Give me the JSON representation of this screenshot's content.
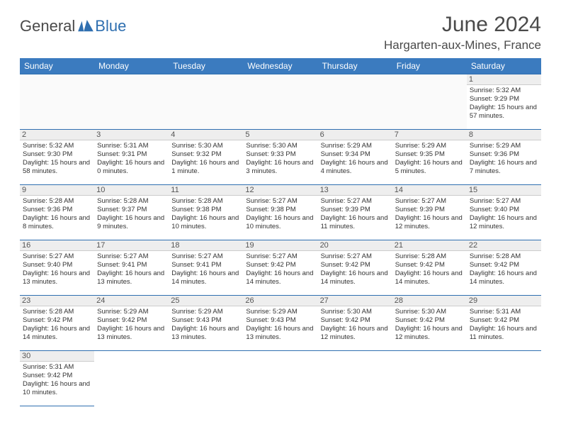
{
  "logo": {
    "text1": "General",
    "text2": "Blue"
  },
  "title": "June 2024",
  "location": "Hargarten-aux-Mines, France",
  "columns": [
    "Sunday",
    "Monday",
    "Tuesday",
    "Wednesday",
    "Thursday",
    "Friday",
    "Saturday"
  ],
  "colors": {
    "header_bg": "#3b7bbf",
    "header_fg": "#ffffff",
    "border": "#2f6fb0",
    "daynum_bg": "#eeeeee",
    "text": "#333333",
    "logo_gray": "#4a4a4a",
    "logo_blue": "#2f6fb0"
  },
  "weeks": [
    [
      null,
      null,
      null,
      null,
      null,
      null,
      {
        "n": "1",
        "sunrise": "5:32 AM",
        "sunset": "9:29 PM",
        "daylight": "15 hours and 57 minutes."
      }
    ],
    [
      {
        "n": "2",
        "sunrise": "5:32 AM",
        "sunset": "9:30 PM",
        "daylight": "15 hours and 58 minutes."
      },
      {
        "n": "3",
        "sunrise": "5:31 AM",
        "sunset": "9:31 PM",
        "daylight": "16 hours and 0 minutes."
      },
      {
        "n": "4",
        "sunrise": "5:30 AM",
        "sunset": "9:32 PM",
        "daylight": "16 hours and 1 minute."
      },
      {
        "n": "5",
        "sunrise": "5:30 AM",
        "sunset": "9:33 PM",
        "daylight": "16 hours and 3 minutes."
      },
      {
        "n": "6",
        "sunrise": "5:29 AM",
        "sunset": "9:34 PM",
        "daylight": "16 hours and 4 minutes."
      },
      {
        "n": "7",
        "sunrise": "5:29 AM",
        "sunset": "9:35 PM",
        "daylight": "16 hours and 5 minutes."
      },
      {
        "n": "8",
        "sunrise": "5:29 AM",
        "sunset": "9:36 PM",
        "daylight": "16 hours and 7 minutes."
      }
    ],
    [
      {
        "n": "9",
        "sunrise": "5:28 AM",
        "sunset": "9:36 PM",
        "daylight": "16 hours and 8 minutes."
      },
      {
        "n": "10",
        "sunrise": "5:28 AM",
        "sunset": "9:37 PM",
        "daylight": "16 hours and 9 minutes."
      },
      {
        "n": "11",
        "sunrise": "5:28 AM",
        "sunset": "9:38 PM",
        "daylight": "16 hours and 10 minutes."
      },
      {
        "n": "12",
        "sunrise": "5:27 AM",
        "sunset": "9:38 PM",
        "daylight": "16 hours and 10 minutes."
      },
      {
        "n": "13",
        "sunrise": "5:27 AM",
        "sunset": "9:39 PM",
        "daylight": "16 hours and 11 minutes."
      },
      {
        "n": "14",
        "sunrise": "5:27 AM",
        "sunset": "9:39 PM",
        "daylight": "16 hours and 12 minutes."
      },
      {
        "n": "15",
        "sunrise": "5:27 AM",
        "sunset": "9:40 PM",
        "daylight": "16 hours and 12 minutes."
      }
    ],
    [
      {
        "n": "16",
        "sunrise": "5:27 AM",
        "sunset": "9:40 PM",
        "daylight": "16 hours and 13 minutes."
      },
      {
        "n": "17",
        "sunrise": "5:27 AM",
        "sunset": "9:41 PM",
        "daylight": "16 hours and 13 minutes."
      },
      {
        "n": "18",
        "sunrise": "5:27 AM",
        "sunset": "9:41 PM",
        "daylight": "16 hours and 14 minutes."
      },
      {
        "n": "19",
        "sunrise": "5:27 AM",
        "sunset": "9:42 PM",
        "daylight": "16 hours and 14 minutes."
      },
      {
        "n": "20",
        "sunrise": "5:27 AM",
        "sunset": "9:42 PM",
        "daylight": "16 hours and 14 minutes."
      },
      {
        "n": "21",
        "sunrise": "5:28 AM",
        "sunset": "9:42 PM",
        "daylight": "16 hours and 14 minutes."
      },
      {
        "n": "22",
        "sunrise": "5:28 AM",
        "sunset": "9:42 PM",
        "daylight": "16 hours and 14 minutes."
      }
    ],
    [
      {
        "n": "23",
        "sunrise": "5:28 AM",
        "sunset": "9:42 PM",
        "daylight": "16 hours and 14 minutes."
      },
      {
        "n": "24",
        "sunrise": "5:29 AM",
        "sunset": "9:42 PM",
        "daylight": "16 hours and 13 minutes."
      },
      {
        "n": "25",
        "sunrise": "5:29 AM",
        "sunset": "9:43 PM",
        "daylight": "16 hours and 13 minutes."
      },
      {
        "n": "26",
        "sunrise": "5:29 AM",
        "sunset": "9:43 PM",
        "daylight": "16 hours and 13 minutes."
      },
      {
        "n": "27",
        "sunrise": "5:30 AM",
        "sunset": "9:42 PM",
        "daylight": "16 hours and 12 minutes."
      },
      {
        "n": "28",
        "sunrise": "5:30 AM",
        "sunset": "9:42 PM",
        "daylight": "16 hours and 12 minutes."
      },
      {
        "n": "29",
        "sunrise": "5:31 AM",
        "sunset": "9:42 PM",
        "daylight": "16 hours and 11 minutes."
      }
    ],
    [
      {
        "n": "30",
        "sunrise": "5:31 AM",
        "sunset": "9:42 PM",
        "daylight": "16 hours and 10 minutes."
      },
      null,
      null,
      null,
      null,
      null,
      null
    ]
  ],
  "labels": {
    "sunrise": "Sunrise: ",
    "sunset": "Sunset: ",
    "daylight": "Daylight: "
  }
}
